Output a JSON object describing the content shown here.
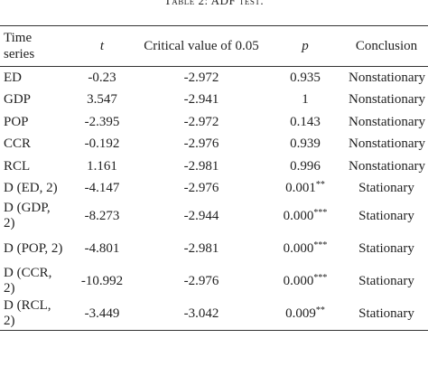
{
  "title": "Table 2: ADF test.",
  "table": {
    "header": [
      "Time series",
      "t",
      "Critical value of 0.05",
      "p",
      "Conclusion"
    ],
    "rows": [
      [
        "ED",
        "-0.23",
        "-2.972",
        {
          "text": "0.935"
        },
        "Nonstationary"
      ],
      [
        "GDP",
        "3.547",
        "-2.941",
        {
          "text": "1"
        },
        "Nonstationary"
      ],
      [
        "POP",
        "-2.395",
        "-2.972",
        {
          "text": "0.143"
        },
        "Nonstationary"
      ],
      [
        "CCR",
        "-0.192",
        "-2.976",
        {
          "text": "0.939"
        },
        "Nonstationary"
      ],
      [
        "RCL",
        "1.161",
        "-2.981",
        {
          "text": "0.996"
        },
        "Nonstationary"
      ],
      [
        "D (ED, 2)",
        "-4.147",
        "-2.976",
        {
          "text": "0.001",
          "sup": "**"
        },
        "Stationary"
      ],
      [
        "D (GDP, 2)",
        "-8.273",
        "-2.944",
        {
          "text": "0.000",
          "sup": "***"
        },
        "Stationary"
      ],
      [
        "D (POP, 2)",
        "-4.801",
        "-2.981",
        {
          "text": "0.000",
          "sup": "***"
        },
        "Stationary"
      ],
      [
        "D (CCR, 2)",
        "-10.992",
        "-2.976",
        {
          "text": "0.000",
          "sup": "***"
        },
        "Stationary"
      ],
      [
        "D (RCL, 2)",
        "-3.449",
        "-3.042",
        {
          "text": "0.009",
          "sup": "**"
        },
        "Stationary"
      ]
    ]
  }
}
